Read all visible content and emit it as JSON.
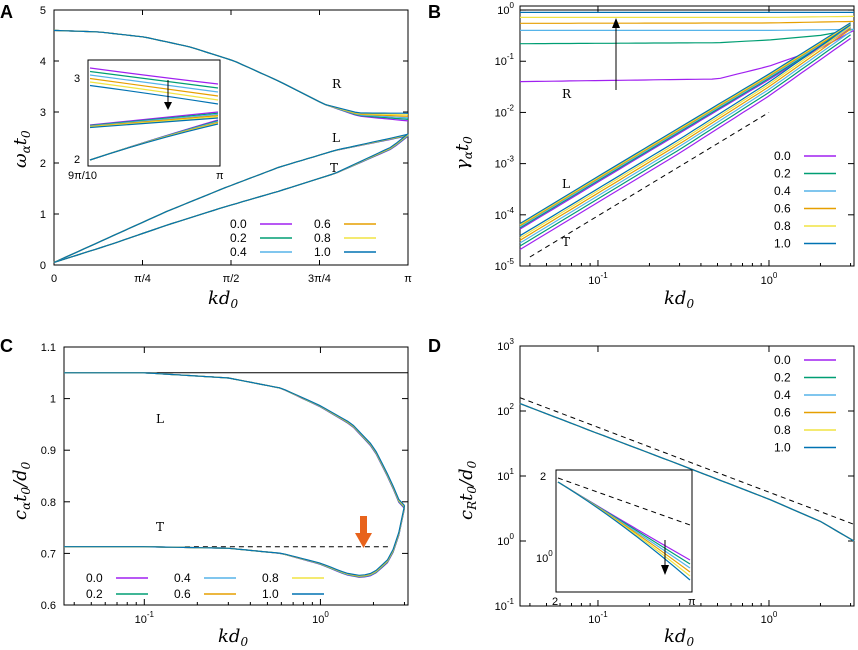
{
  "colors": {
    "0.0": "#a020f0",
    "0.2": "#009e73",
    "0.4": "#56b4e9",
    "0.6": "#e69f00",
    "0.8": "#f0e442",
    "1.0": "#0072b2",
    "arrow": "#e8631c",
    "black": "#000000"
  },
  "chart_data": [
    {
      "panel": "A",
      "type": "line",
      "xlabel": "kd",
      "xlabel_sub": "0",
      "ylabel": "ω",
      "ylabel_sub": "α",
      "ylabel_rest": "t",
      "ylabel_rest_sub": "0",
      "xlim": [
        0,
        3.14159
      ],
      "ylim": [
        0,
        5
      ],
      "xticks": [
        {
          "v": 0,
          "label": "0"
        },
        {
          "v": 0.7854,
          "label": "π/4"
        },
        {
          "v": 1.5708,
          "label": "π/2"
        },
        {
          "v": 2.3562,
          "label": "3π/4"
        },
        {
          "v": 3.14159,
          "label": "π"
        }
      ],
      "yticks": [
        0,
        1,
        2,
        3,
        4,
        5
      ],
      "legend": [
        "0.0",
        "0.2",
        "0.4",
        "0.6",
        "0.8",
        "1.0"
      ],
      "legend_position": "bottom-right",
      "branch_labels": [
        "R",
        "L",
        "T"
      ],
      "series": [
        {
          "name": "R",
          "x": [
            0,
            0.4,
            0.8,
            1.2,
            1.6,
            2.0,
            2.4,
            2.7,
            3.14159
          ],
          "values": [
            4.6,
            4.57,
            4.47,
            4.28,
            4.0,
            3.6,
            3.15,
            2.95,
            2.9
          ]
        },
        {
          "name": "L",
          "x": [
            0,
            0.5,
            1.0,
            1.5,
            2.0,
            2.5,
            3.0,
            3.14159
          ],
          "values": [
            0.05,
            0.55,
            1.05,
            1.5,
            1.92,
            2.25,
            2.48,
            2.55
          ]
        },
        {
          "name": "T",
          "x": [
            0,
            0.5,
            1.0,
            1.5,
            2.0,
            2.5,
            3.0,
            3.14159
          ],
          "values": [
            0.05,
            0.4,
            0.78,
            1.13,
            1.45,
            1.8,
            2.3,
            2.55
          ]
        }
      ],
      "inset": {
        "xticks": [
          "9π/10",
          "π"
        ],
        "yticks": [
          "3",
          "2"
        ]
      }
    },
    {
      "panel": "B",
      "type": "line",
      "xlabel": "kd",
      "xlabel_sub": "0",
      "ylabel": "γ",
      "ylabel_sub": "α",
      "ylabel_rest": "t",
      "ylabel_rest_sub": "0",
      "xscale": "log",
      "yscale": "log",
      "xlim": [
        0.035,
        3.14159
      ],
      "ylim": [
        1e-05,
        1.2
      ],
      "xticks": [
        {
          "v": 0.1,
          "label": "10",
          "exp": "-1"
        },
        {
          "v": 1,
          "label": "10",
          "exp": "0"
        }
      ],
      "yticks": [
        {
          "v": 1e-05,
          "label": "10",
          "exp": "-5"
        },
        {
          "v": 0.0001,
          "label": "10",
          "exp": "-4"
        },
        {
          "v": 0.001,
          "label": "10",
          "exp": "-3"
        },
        {
          "v": 0.01,
          "label": "10",
          "exp": "-2"
        },
        {
          "v": 0.1,
          "label": "10",
          "exp": "-1"
        },
        {
          "v": 1,
          "label": "10",
          "exp": "0"
        }
      ],
      "legend": [
        "0.0",
        "0.2",
        "0.4",
        "0.6",
        "0.8",
        "1.0"
      ],
      "legend_position": "right",
      "branch_labels": [
        "R",
        "L",
        "T"
      ],
      "series": [
        {
          "name": "R 0.0",
          "x": [
            0.035,
            0.5,
            1.0,
            2.0,
            3.14159
          ],
          "values": [
            0.04,
            0.045,
            0.08,
            0.18,
            0.4
          ]
        },
        {
          "name": "R 0.2",
          "x": [
            0.035,
            0.5,
            1.0,
            2.0,
            3.14159
          ],
          "values": [
            0.22,
            0.23,
            0.26,
            0.32,
            0.42
          ]
        },
        {
          "name": "R 0.4",
          "x": [
            0.035,
            1.0,
            3.14159
          ],
          "values": [
            0.4,
            0.4,
            0.42
          ]
        },
        {
          "name": "R 0.6",
          "x": [
            0.035,
            1.0,
            3.14159
          ],
          "values": [
            0.55,
            0.56,
            0.6
          ]
        },
        {
          "name": "R 0.8",
          "x": [
            0.035,
            1.0,
            3.14159
          ],
          "values": [
            0.72,
            0.72,
            0.75
          ]
        },
        {
          "name": "R 1.0",
          "x": [
            0.035,
            1.0,
            3.14159
          ],
          "values": [
            0.9,
            0.9,
            0.9
          ]
        },
        {
          "name": "L",
          "x": [
            0.035,
            0.1,
            0.3,
            1.0,
            3.0
          ],
          "values": [
            6e-05,
            0.0005,
            0.0045,
            0.05,
            0.5
          ]
        },
        {
          "name": "T",
          "x": [
            0.035,
            0.1,
            0.3,
            1.0,
            3.0
          ],
          "values": [
            3e-05,
            0.00025,
            0.0023,
            0.03,
            0.4
          ]
        },
        {
          "name": "slope",
          "x": [
            0.04,
            1.0
          ],
          "values": [
            1.5e-05,
            0.01
          ]
        }
      ]
    },
    {
      "panel": "C",
      "type": "line",
      "xlabel": "kd",
      "xlabel_sub": "0",
      "ylabel": "c",
      "ylabel_sub": "α",
      "ylabel_rest": "t",
      "ylabel_rest_sub": "0",
      "ylabel_tail": "/d",
      "ylabel_tail_sub": "0",
      "xscale": "log",
      "xlim": [
        0.035,
        3.14159
      ],
      "ylim": [
        0.6,
        1.1
      ],
      "xticks": [
        {
          "v": 0.1,
          "label": "10",
          "exp": "-1"
        },
        {
          "v": 1,
          "label": "10",
          "exp": "0"
        }
      ],
      "yticks": [
        0.6,
        0.7,
        0.8,
        0.9,
        1,
        1.1
      ],
      "legend": [
        "0.0",
        "0.4",
        "0.8",
        "0.2",
        "0.6",
        "1.0"
      ],
      "legend_position": "bottom-left",
      "branch_labels": [
        "L",
        "T"
      ],
      "series": [
        {
          "name": "L",
          "x": [
            0.035,
            0.1,
            0.3,
            0.6,
            1.0,
            1.5,
            2.0,
            2.5,
            2.8,
            3.0
          ],
          "values": [
            1.05,
            1.05,
            1.04,
            1.02,
            0.985,
            0.95,
            0.905,
            0.84,
            0.8,
            0.79
          ]
        },
        {
          "name": "T",
          "x": [
            0.035,
            0.1,
            0.3,
            0.6,
            1.0,
            1.4,
            1.7,
            2.0,
            2.5,
            2.8,
            3.0
          ],
          "values": [
            0.713,
            0.713,
            0.71,
            0.7,
            0.68,
            0.66,
            0.655,
            0.66,
            0.69,
            0.74,
            0.79
          ]
        },
        {
          "name": "L-limit",
          "x": [
            0.035,
            3.14159
          ],
          "values": [
            1.05,
            1.05
          ]
        },
        {
          "name": "T-limit",
          "x": [
            0.17,
            2.5
          ],
          "values": [
            0.713,
            0.713
          ]
        }
      ]
    },
    {
      "panel": "D",
      "type": "line",
      "xlabel": "kd",
      "xlabel_sub": "0",
      "ylabel": "c",
      "ylabel_sub": "R",
      "ylabel_rest": "t",
      "ylabel_rest_sub": "0",
      "ylabel_tail": "/d",
      "ylabel_tail_sub": "0",
      "xscale": "log",
      "yscale": "log",
      "xlim": [
        0.035,
        3.14159
      ],
      "ylim": [
        0.1,
        1000
      ],
      "xticks": [
        {
          "v": 0.1,
          "label": "10",
          "exp": "-1"
        },
        {
          "v": 1,
          "label": "10",
          "exp": "0"
        }
      ],
      "yticks": [
        {
          "v": 0.1,
          "label": "10",
          "exp": "-1"
        },
        {
          "v": 1,
          "label": "10",
          "exp": "0"
        },
        {
          "v": 10,
          "label": "10",
          "exp": "1"
        },
        {
          "v": 100,
          "label": "10",
          "exp": "2"
        },
        {
          "v": 1000,
          "label": "10",
          "exp": "3"
        }
      ],
      "legend": [
        "0.0",
        "0.2",
        "0.4",
        "0.6",
        "0.8",
        "1.0"
      ],
      "legend_position": "top-right",
      "series": [
        {
          "name": "c_R",
          "x": [
            0.035,
            0.1,
            0.3,
            1.0,
            2.0,
            3.14159
          ],
          "values": [
            130,
            45,
            15,
            4.4,
            2.0,
            1.0
          ]
        },
        {
          "name": "slope",
          "x": [
            0.035,
            3.14159
          ],
          "values": [
            160,
            1.8
          ]
        }
      ],
      "inset": {
        "xticks": [
          "2",
          "π"
        ],
        "yticks": [
          "2",
          "10",
          "0"
        ]
      }
    }
  ]
}
